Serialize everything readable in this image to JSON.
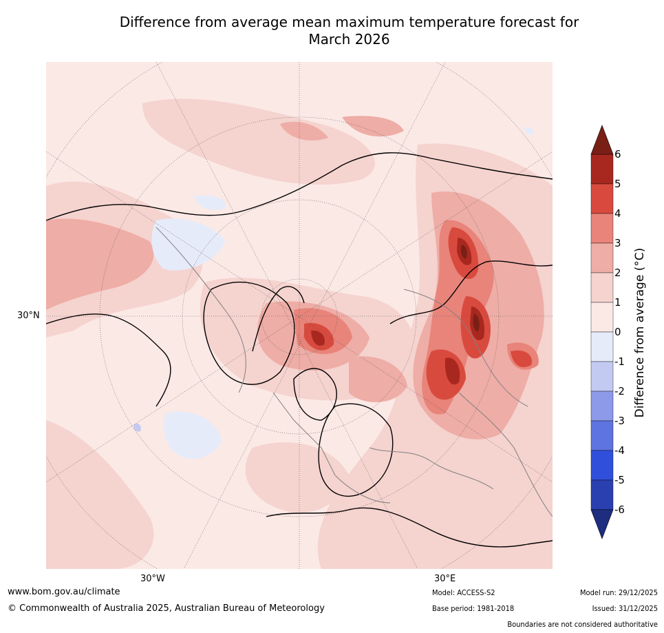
{
  "title": {
    "line1": "Difference from average mean maximum temperature forecast for",
    "line2": "March 2026"
  },
  "map": {
    "projection_labels": {
      "lat_30n": "30°N",
      "lon_30w": "30°W",
      "lon_30e": "30°E"
    },
    "colors": {
      "ocean_bg": "#fbe9e6",
      "land_outline": "#000000",
      "border": "#808080",
      "grid": "#555555"
    }
  },
  "colorbar": {
    "label": "Difference from average (°C)",
    "ticks": [
      "6",
      "5",
      "4",
      "3",
      "2",
      "1",
      "0",
      "-1",
      "-2",
      "-3",
      "-4",
      "-5",
      "-6"
    ],
    "bins": [
      {
        "range": "5 to 6",
        "color": "#a8281f"
      },
      {
        "range": "4 to 5",
        "color": "#d94a3e"
      },
      {
        "range": "3 to 4",
        "color": "#e8847a"
      },
      {
        "range": "2 to 3",
        "color": "#eeada6"
      },
      {
        "range": "1 to 2",
        "color": "#f5d3cf"
      },
      {
        "range": "0 to 1",
        "color": "#fbe9e6"
      },
      {
        "range": "-1 to 0",
        "color": "#e6ebfa"
      },
      {
        "range": "-2 to -1",
        "color": "#c3caf2"
      },
      {
        "range": "-3 to -2",
        "color": "#8c9ae9"
      },
      {
        "range": "-4 to -3",
        "color": "#5e74e1"
      },
      {
        "range": "-5 to -4",
        "color": "#3050dc"
      },
      {
        "range": "-6 to -5",
        "color": "#2a3fb0"
      }
    ],
    "over_color": "#7a1f16",
    "under_color": "#1e2d80"
  },
  "footer": {
    "website": "www.bom.gov.au/climate",
    "copyright": "© Commonwealth of Australia 2025, Australian Bureau of Meteorology",
    "model": "Model: ACCESS-S2",
    "base_period": "Base period: 1981-2018",
    "model_run": "Model run: 29/12/2025",
    "issued": "Issued: 31/12/2025",
    "disclaimer": "Boundaries are not considered authoritative"
  }
}
